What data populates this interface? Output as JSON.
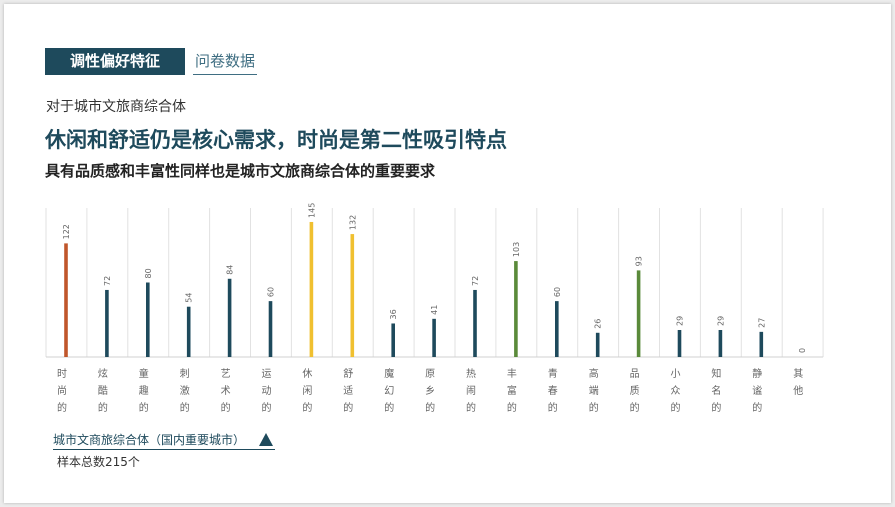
{
  "header": {
    "tag_main": "调性偏好特征",
    "tag_sub": "问卷数据"
  },
  "subtitle": "对于城市文旅商综合体",
  "headline": "休闲和舒适仍是核心需求，时尚是第二性吸引特点",
  "headline2": "具有品质感和丰富性同样也是城市文旅商综合体的重要要求",
  "chart_data": {
    "type": "bar",
    "categories": [
      "时尚的",
      "炫酷的",
      "童趣的",
      "刺激的",
      "艺术的",
      "运动的",
      "休闲的",
      "舒适的",
      "魔幻的",
      "原乡的",
      "热闹的",
      "丰富的",
      "青春的",
      "高端的",
      "品质的",
      "小众的",
      "知名的",
      "静谧的",
      "其他"
    ],
    "values": [
      122,
      72,
      80,
      54,
      84,
      60,
      145,
      132,
      36,
      41,
      72,
      103,
      60,
      26,
      93,
      29,
      29,
      27,
      0
    ],
    "value_labels": [
      "122",
      "72",
      "80",
      "54",
      "84",
      "60",
      "145",
      "132",
      "36",
      "41",
      "72",
      "103",
      "60",
      "26",
      "93",
      "29",
      "29",
      "27",
      "0"
    ],
    "colors": [
      "#c0562b",
      "#1e4a5c",
      "#1e4a5c",
      "#1e4a5c",
      "#1e4a5c",
      "#1e4a5c",
      "#f0c030",
      "#f0c030",
      "#1e4a5c",
      "#1e4a5c",
      "#1e4a5c",
      "#5a8a3a",
      "#1e4a5c",
      "#1e4a5c",
      "#5a8a3a",
      "#1e4a5c",
      "#1e4a5c",
      "#1e4a5c",
      "#1e4a5c"
    ],
    "ylim": [
      0,
      160
    ],
    "grid": true,
    "title": "",
    "xlabel": "",
    "ylabel": ""
  },
  "legend": {
    "label": "城市文商旅综合体（国内重要城市）"
  },
  "sample": "样本总数215个"
}
